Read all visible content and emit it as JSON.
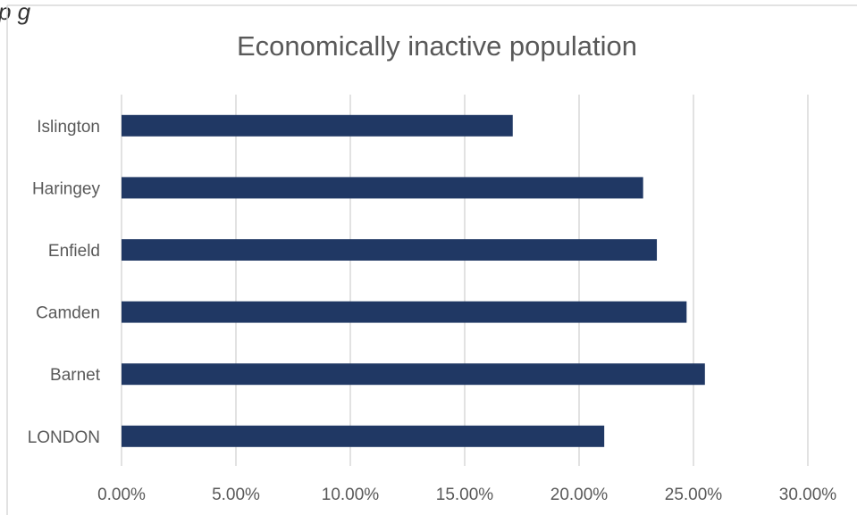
{
  "caption_fragment": "p                        g",
  "chart_data": {
    "type": "bar",
    "orientation": "horizontal",
    "title": "Economically inactive population",
    "xlabel": "",
    "ylabel": "",
    "categories": [
      "Islington",
      "Haringey",
      "Enfield",
      "Camden",
      "Barnet",
      "LONDON"
    ],
    "values": [
      17.1,
      22.8,
      23.4,
      24.7,
      25.5,
      21.1
    ],
    "xlim": [
      0,
      30
    ],
    "x_ticks": [
      0,
      5,
      10,
      15,
      20,
      25,
      30
    ],
    "x_tick_labels": [
      "0.00%",
      "5.00%",
      "10.00%",
      "15.00%",
      "20.00%",
      "25.00%",
      "30.00%"
    ],
    "grid": "vertical",
    "legend": "none",
    "bar_color": "#203864",
    "grid_color": "#d9d9d9"
  }
}
